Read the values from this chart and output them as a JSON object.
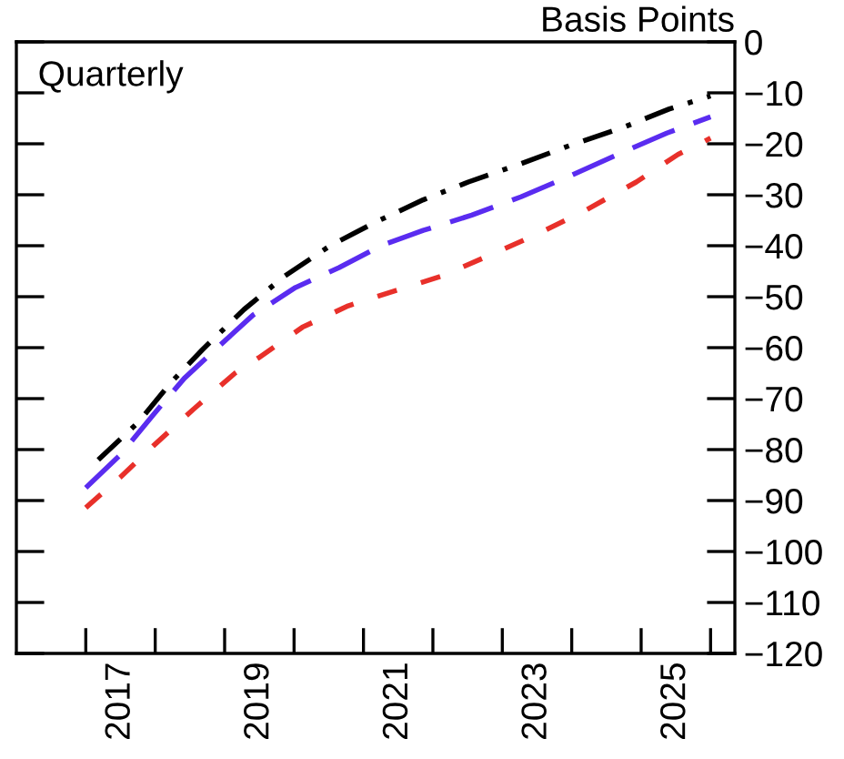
{
  "chart_data": {
    "type": "line",
    "ylabel": "Basis Points",
    "annotations": [
      "Quarterly"
    ],
    "xlim": [
      2016,
      2026.35
    ],
    "ylim": [
      -120,
      0
    ],
    "xticks": [
      {
        "value": 2017,
        "label": null
      },
      {
        "value": 2017.5,
        "label": "2017"
      },
      {
        "value": 2018,
        "label": null
      },
      {
        "value": 2019,
        "label": null
      },
      {
        "value": 2019.5,
        "label": "2019"
      },
      {
        "value": 2020,
        "label": null
      },
      {
        "value": 2021,
        "label": null
      },
      {
        "value": 2021.5,
        "label": "2021"
      },
      {
        "value": 2022,
        "label": null
      },
      {
        "value": 2023,
        "label": null
      },
      {
        "value": 2023.5,
        "label": "2023"
      },
      {
        "value": 2024,
        "label": null
      },
      {
        "value": 2025,
        "label": null
      },
      {
        "value": 2025.5,
        "label": "2025"
      },
      {
        "value": 2026,
        "label": null
      }
    ],
    "yticks": [
      0,
      -10,
      -20,
      -30,
      -40,
      -50,
      -60,
      -70,
      -80,
      -90,
      -100,
      -110,
      -120
    ],
    "grid": false,
    "legend": false,
    "marker": "none",
    "series": [
      {
        "color": "#000000",
        "line_style": "dashdot",
        "x": [
          2017.18,
          2017.76,
          2018.23,
          2018.68,
          2019.28,
          2019.86,
          2020.52,
          2021.17,
          2021.86,
          2022.51,
          2023.27,
          2023.96,
          2024.74,
          2025.4,
          2026.0
        ],
        "values": [
          -82,
          -74.6,
          -66.8,
          -60.4,
          -52.5,
          -46,
          -40,
          -35.4,
          -31,
          -27.5,
          -23.9,
          -20.4,
          -16.8,
          -13.2,
          -10.6
        ]
      },
      {
        "color": "#5a2cf0",
        "line_style": "dashed",
        "x": [
          2017.0,
          2017.5,
          2017.97,
          2018.42,
          2018.84,
          2019.41,
          2020.02,
          2020.65,
          2021.25,
          2021.86,
          2022.56,
          2023.27,
          2023.96,
          2024.66,
          2025.37,
          2026.0
        ],
        "values": [
          -87.5,
          -81,
          -73.2,
          -66,
          -60.7,
          -53.6,
          -48.2,
          -44.3,
          -40,
          -37,
          -34,
          -30.4,
          -26.4,
          -22.1,
          -17.9,
          -14.7
        ]
      },
      {
        "color": "#e8302a",
        "line_style": "dotted",
        "x": [
          2017.0,
          2017.5,
          2017.97,
          2018.55,
          2019.15,
          2019.49,
          2020.12,
          2020.78,
          2021.44,
          2022.12,
          2022.83,
          2023.54,
          2024.22,
          2024.93,
          2025.53,
          2026.0
        ],
        "values": [
          -91.4,
          -85.4,
          -79.3,
          -72.1,
          -65,
          -62,
          -56,
          -51.8,
          -48.9,
          -46,
          -41.8,
          -37.5,
          -32.9,
          -27.5,
          -22.1,
          -18.9
        ]
      }
    ]
  }
}
